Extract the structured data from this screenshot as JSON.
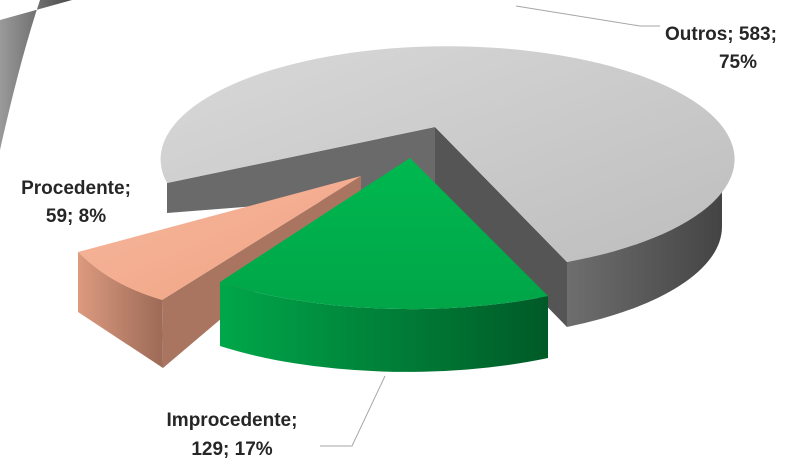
{
  "chart_data": {
    "type": "pie",
    "title": "",
    "slices": [
      {
        "name": "Outros",
        "value": 583,
        "percent": "75%",
        "color": "#c9c9c9",
        "side_color": "#5f5f5f"
      },
      {
        "name": "Improcedente",
        "value": 129,
        "percent": "17%",
        "color": "#00b050",
        "side_color": "#007a37"
      },
      {
        "name": "Procedente",
        "value": 59,
        "percent": "8%",
        "color": "#f4a98a",
        "side_color": "#b9806a"
      }
    ],
    "labels": {
      "outros_l1": "Outros; 583;",
      "outros_l2": "75%",
      "improcedente_l1": "Improcedente;",
      "improcedente_l2": "129; 17%",
      "procedente_l1": "Procedente;",
      "procedente_l2": "59; 8%"
    },
    "legend": "none",
    "style": "3d-exploded"
  }
}
